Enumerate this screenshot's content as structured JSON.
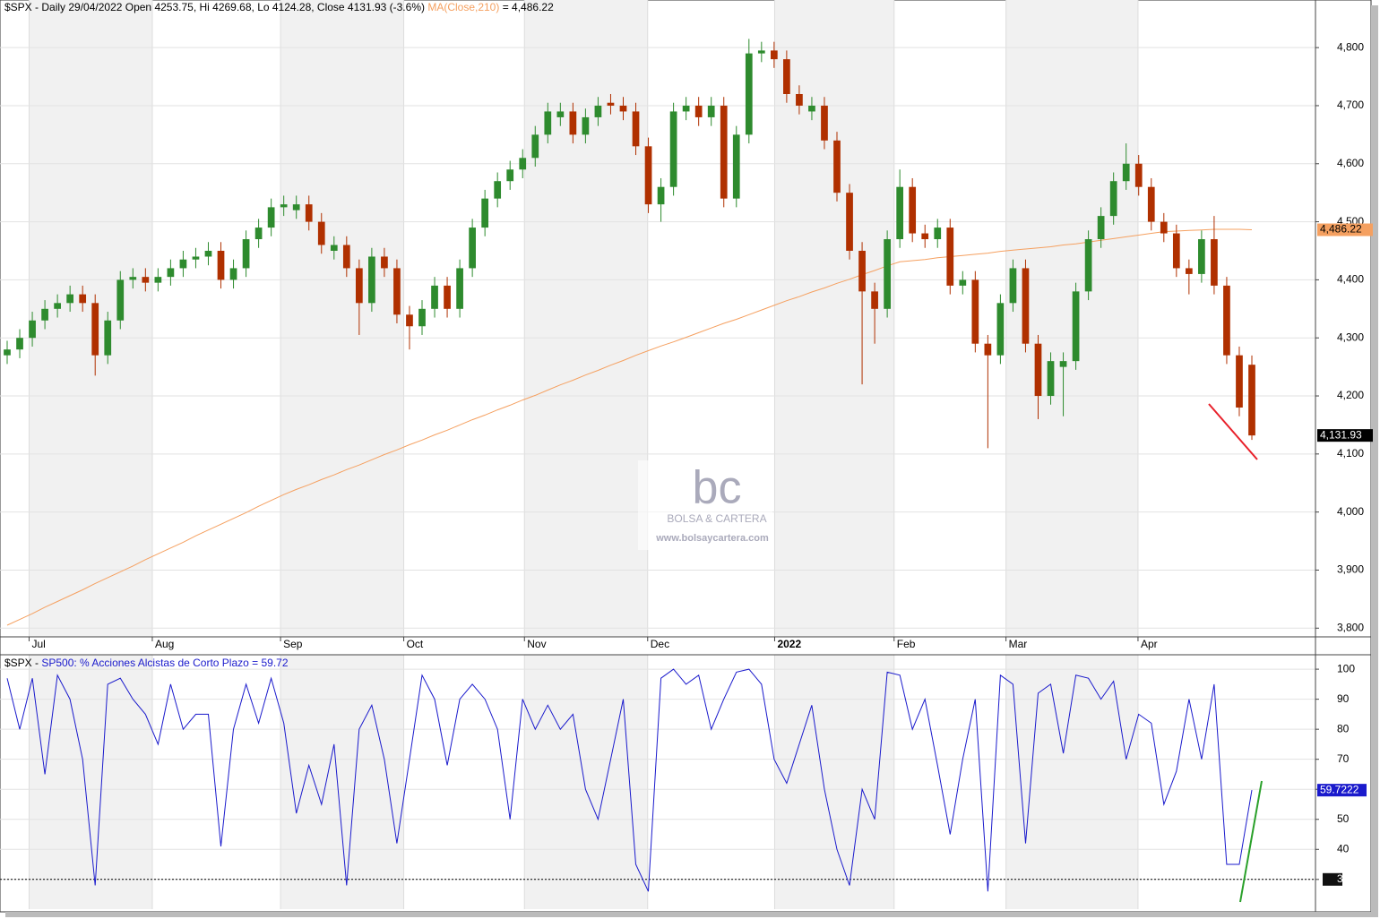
{
  "chart_data": [
    {
      "type": "candlestick",
      "title": "$SPX - Daily 29/04/2022 Open 4253.75, Hi 4269.68, Lo 4124.28, Close 4131.93 (-3.6%)",
      "title_suffix": "= 4,486.22",
      "close_label": "4,131.93",
      "up_color": "#2e8b2e",
      "down_color": "#b03000",
      "xlim": [
        -0.57,
        104.06
      ],
      "xticks": [
        {
          "value": 2.1,
          "label": "Jul"
        },
        {
          "value": 11.9,
          "label": "Aug"
        },
        {
          "value": 22.1,
          "label": "Sep"
        },
        {
          "value": 31.9,
          "label": "Oct"
        },
        {
          "value": 41.5,
          "label": "Nov"
        },
        {
          "value": 51.3,
          "label": "Dec"
        },
        {
          "value": 61.4,
          "label": "2022"
        },
        {
          "value": 70.9,
          "label": "Feb"
        },
        {
          "value": 79.8,
          "label": "Mar"
        },
        {
          "value": 90.3,
          "label": "Apr"
        }
      ],
      "ylim": [
        3785,
        4882
      ],
      "yticks": [
        {
          "value": 3800,
          "label": "3,800"
        },
        {
          "value": 3900,
          "label": "3,900"
        },
        {
          "value": 4000,
          "label": "4,000"
        },
        {
          "value": 4100,
          "label": "4,100"
        },
        {
          "value": 4200,
          "label": "4,200"
        },
        {
          "value": 4300,
          "label": "4,300"
        },
        {
          "value": 4400,
          "label": "4,400"
        },
        {
          "value": 4500,
          "label": "4,500"
        },
        {
          "value": 4600,
          "label": "4,600"
        },
        {
          "value": 4700,
          "label": "4,700"
        },
        {
          "value": 4800,
          "label": "4,800"
        }
      ],
      "grid": true,
      "open": [
        4270,
        4280,
        4300,
        4330,
        4350,
        4360,
        4375,
        4360,
        4270,
        4330,
        4400,
        4405,
        4395,
        4405,
        4420,
        4435,
        4440,
        4450,
        4400,
        4420,
        4470,
        4490,
        4525,
        4520,
        4530,
        4500,
        4450,
        4460,
        4420,
        4360,
        4440,
        4420,
        4340,
        4320,
        4350,
        4390,
        4350,
        4420,
        4490,
        4540,
        4570,
        4590,
        4610,
        4650,
        4680,
        4690,
        4650,
        4680,
        4705,
        4700,
        4690,
        4630,
        4530,
        4560,
        4690,
        4700,
        4680,
        4700,
        4540,
        4650,
        4790,
        4795,
        4780,
        4720,
        4690,
        4700,
        4640,
        4550,
        4450,
        4380,
        4350,
        4470,
        4560,
        4480,
        4470,
        4490,
        4390,
        4400,
        4290,
        4270,
        4360,
        4420,
        4290,
        4200,
        4250,
        4260,
        4380,
        4470,
        4510,
        4570,
        4600,
        4560,
        4500,
        4480,
        4420,
        4410,
        4470,
        4390,
        4270,
        4253.75
      ],
      "high": [
        4295,
        4315,
        4345,
        4365,
        4375,
        4390,
        4390,
        4375,
        4345,
        4415,
        4420,
        4420,
        4420,
        4435,
        4450,
        4455,
        4465,
        4465,
        4435,
        4485,
        4505,
        4540,
        4545,
        4545,
        4545,
        4515,
        4475,
        4475,
        4435,
        4455,
        4455,
        4435,
        4355,
        4365,
        4405,
        4405,
        4435,
        4505,
        4555,
        4585,
        4605,
        4625,
        4665,
        4705,
        4705,
        4705,
        4695,
        4715,
        4720,
        4715,
        4705,
        4645,
        4575,
        4705,
        4715,
        4715,
        4715,
        4715,
        4665,
        4815,
        4810,
        4810,
        4795,
        4735,
        4715,
        4715,
        4655,
        4565,
        4465,
        4395,
        4485,
        4590,
        4575,
        4495,
        4505,
        4505,
        4415,
        4415,
        4305,
        4375,
        4435,
        4435,
        4305,
        4275,
        4275,
        4395,
        4485,
        4525,
        4585,
        4635,
        4615,
        4575,
        4515,
        4495,
        4435,
        4485,
        4510,
        4405,
        4285,
        4269.68
      ],
      "low": [
        4255,
        4265,
        4285,
        4315,
        4335,
        4345,
        4345,
        4235,
        4255,
        4315,
        4385,
        4380,
        4380,
        4390,
        4405,
        4420,
        4425,
        4385,
        4385,
        4405,
        4455,
        4475,
        4510,
        4505,
        4485,
        4445,
        4435,
        4405,
        4305,
        4345,
        4405,
        4325,
        4280,
        4305,
        4335,
        4335,
        4335,
        4405,
        4475,
        4525,
        4555,
        4575,
        4595,
        4635,
        4665,
        4635,
        4635,
        4665,
        4685,
        4675,
        4615,
        4515,
        4500,
        4545,
        4675,
        4665,
        4665,
        4525,
        4525,
        4635,
        4775,
        4765,
        4705,
        4685,
        4675,
        4625,
        4535,
        4435,
        4220,
        4290,
        4335,
        4455,
        4465,
        4455,
        4455,
        4375,
        4375,
        4275,
        4110,
        4255,
        4345,
        4275,
        4160,
        4185,
        4165,
        4245,
        4365,
        4455,
        4495,
        4555,
        4545,
        4485,
        4465,
        4405,
        4375,
        4395,
        4375,
        4255,
        4165,
        4124.28
      ],
      "close": [
        4280,
        4300,
        4330,
        4350,
        4360,
        4375,
        4360,
        4270,
        4330,
        4400,
        4405,
        4395,
        4405,
        4420,
        4435,
        4440,
        4450,
        4400,
        4420,
        4470,
        4490,
        4525,
        4530,
        4530,
        4500,
        4460,
        4460,
        4420,
        4360,
        4440,
        4420,
        4340,
        4320,
        4350,
        4390,
        4350,
        4420,
        4490,
        4540,
        4570,
        4590,
        4610,
        4650,
        4690,
        4690,
        4650,
        4680,
        4700,
        4700,
        4690,
        4630,
        4530,
        4560,
        4690,
        4700,
        4680,
        4700,
        4540,
        4650,
        4790,
        4795,
        4780,
        4720,
        4700,
        4700,
        4640,
        4550,
        4450,
        4380,
        4350,
        4470,
        4560,
        4480,
        4470,
        4490,
        4390,
        4400,
        4290,
        4270,
        4360,
        4420,
        4290,
        4200,
        4260,
        4260,
        4380,
        4470,
        4510,
        4570,
        4600,
        4560,
        4500,
        4480,
        4420,
        4410,
        4470,
        4390,
        4270,
        4180,
        4131.93
      ],
      "series": [
        {
          "name": "MA(Close,210)",
          "color": "#f5a060",
          "last_label": "4,486.22",
          "values": [
            3805,
            3815,
            3825,
            3836,
            3846,
            3856,
            3866,
            3877,
            3887,
            3897,
            3907,
            3918,
            3928,
            3938,
            3948,
            3959,
            3969,
            3979,
            3989,
            3999,
            4010,
            4020,
            4030,
            4039,
            4047,
            4056,
            4064,
            4073,
            4081,
            4090,
            4099,
            4107,
            4116,
            4124,
            4133,
            4141,
            4150,
            4159,
            4167,
            4176,
            4184,
            4193,
            4201,
            4210,
            4219,
            4227,
            4236,
            4244,
            4253,
            4261,
            4270,
            4278,
            4286,
            4293,
            4301,
            4309,
            4317,
            4325,
            4332,
            4340,
            4348,
            4356,
            4364,
            4371,
            4379,
            4386,
            4394,
            4401,
            4409,
            4416,
            4424,
            4431,
            4433,
            4435,
            4438,
            4440,
            4442,
            4444,
            4446,
            4449,
            4451,
            4453,
            4455,
            4457,
            4460,
            4462,
            4465,
            4468,
            4471,
            4474,
            4477,
            4480,
            4483,
            4484,
            4485,
            4486,
            4487,
            4487,
            4487,
            4486.22
          ]
        }
      ]
    },
    {
      "type": "line",
      "title_prefix": "$SPX -",
      "xlim": [
        -0.57,
        104.06
      ],
      "ylim": [
        20.1,
        104.8
      ],
      "yticks": [
        30,
        40,
        50,
        60,
        70,
        80,
        90,
        100
      ],
      "grid": true,
      "reference": 30,
      "series": [
        {
          "name": "SP500: % Acciones Alcistas de Corto Plazo = 59.72",
          "color": "#1a1acc",
          "last_label": "59.7222",
          "values": [
            97,
            80,
            97,
            65,
            98,
            90,
            70,
            28,
            95,
            97,
            90,
            85,
            75,
            95,
            80,
            85,
            85,
            41,
            80,
            95,
            82,
            97,
            82,
            52,
            68,
            55,
            75,
            28,
            80,
            88,
            70,
            42,
            70,
            98,
            90,
            68,
            90,
            95,
            90,
            80,
            50,
            90,
            80,
            88,
            80,
            85,
            60,
            50,
            70,
            90,
            35,
            26,
            97,
            100,
            95,
            98,
            80,
            90,
            99,
            100,
            95,
            70,
            62,
            75,
            88,
            60,
            40,
            28,
            60,
            50,
            99,
            98,
            80,
            90,
            68,
            45,
            70,
            90,
            26,
            98,
            95,
            42,
            92,
            95,
            72,
            98,
            97,
            90,
            96,
            70,
            85,
            82,
            55,
            66,
            90,
            70,
            95,
            35,
            35,
            59.7222
          ]
        }
      ]
    }
  ],
  "watermark": {
    "logo": "bc",
    "name": "BOLSA & CARTERA",
    "url": "www.bolsaycartera.com"
  }
}
